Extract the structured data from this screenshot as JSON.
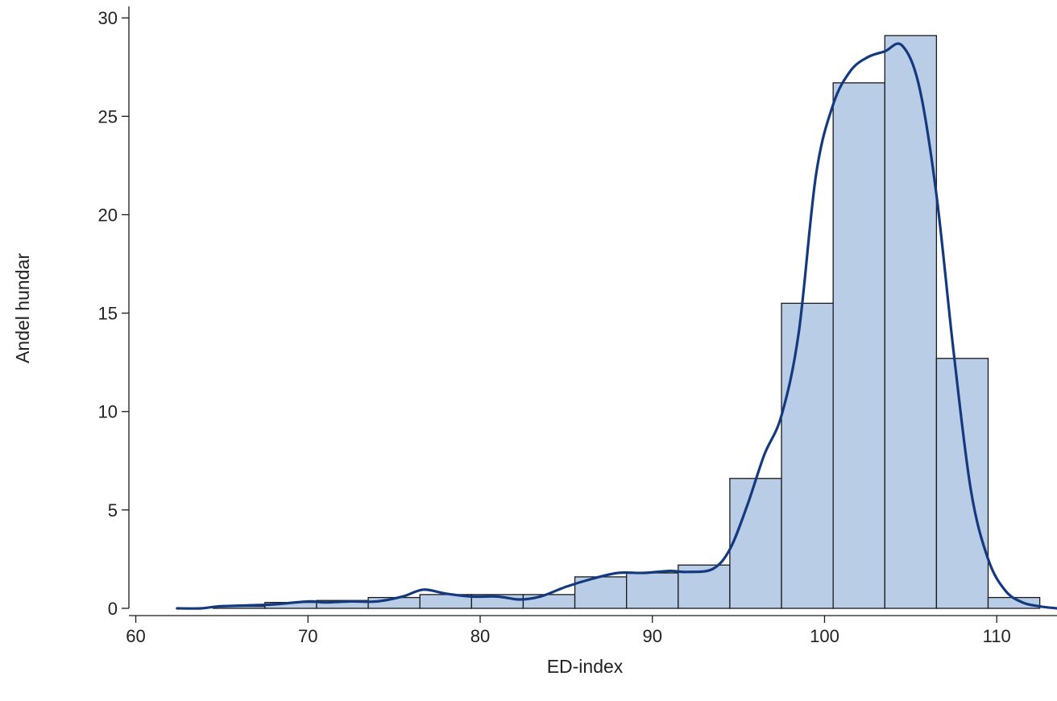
{
  "chart_data": {
    "type": "bar",
    "subtype": "histogram-with-density",
    "xlabel": "ED-index",
    "ylabel": "Andel hundar",
    "xlim": [
      59.6,
      113.5
    ],
    "ylim": [
      0,
      30.5
    ],
    "xticks": [
      60,
      70,
      80,
      90,
      100,
      110
    ],
    "yticks": [
      0,
      5,
      10,
      15,
      20,
      25,
      30
    ],
    "grid": false,
    "bin_width": 3,
    "bins": [
      {
        "x0": 64.5,
        "x1": 67.5,
        "value": 0.1
      },
      {
        "x0": 67.5,
        "x1": 70.5,
        "value": 0.3
      },
      {
        "x0": 70.5,
        "x1": 73.5,
        "value": 0.4
      },
      {
        "x0": 73.5,
        "x1": 76.5,
        "value": 0.55
      },
      {
        "x0": 76.5,
        "x1": 79.5,
        "value": 0.7
      },
      {
        "x0": 79.5,
        "x1": 82.5,
        "value": 0.7
      },
      {
        "x0": 82.5,
        "x1": 85.5,
        "value": 0.7
      },
      {
        "x0": 85.5,
        "x1": 88.5,
        "value": 1.6
      },
      {
        "x0": 88.5,
        "x1": 91.5,
        "value": 1.8
      },
      {
        "x0": 91.5,
        "x1": 94.5,
        "value": 2.2
      },
      {
        "x0": 94.5,
        "x1": 97.5,
        "value": 6.6
      },
      {
        "x0": 97.5,
        "x1": 100.5,
        "value": 15.5
      },
      {
        "x0": 100.5,
        "x1": 103.5,
        "value": 26.7
      },
      {
        "x0": 103.5,
        "x1": 106.5,
        "value": 29.1
      },
      {
        "x0": 106.5,
        "x1": 109.5,
        "value": 12.7
      },
      {
        "x0": 109.5,
        "x1": 112.5,
        "value": 0.55
      }
    ],
    "density": {
      "x": [
        62.4,
        63.8,
        64.8,
        66.5,
        68.0,
        70.0,
        71.0,
        72.5,
        74.0,
        75.5,
        76.7,
        78.0,
        79.5,
        81.0,
        82.3,
        83.5,
        85.0,
        86.5,
        88.0,
        89.5,
        91.0,
        92.0,
        93.5,
        94.5,
        95.5,
        96.5,
        97.5,
        98.5,
        99.5,
        100.5,
        101.5,
        102.5,
        103.5,
        104.5,
        105.5,
        106.5,
        107.5,
        108.5,
        109.5,
        110.5,
        111.5,
        112.5,
        113.5
      ],
      "y": [
        0.0,
        0.0,
        0.1,
        0.15,
        0.2,
        0.35,
        0.3,
        0.35,
        0.35,
        0.6,
        0.95,
        0.75,
        0.6,
        0.6,
        0.45,
        0.6,
        1.1,
        1.5,
        1.8,
        1.8,
        1.9,
        1.85,
        2.0,
        3.0,
        5.2,
        7.8,
        9.8,
        14.0,
        22.0,
        25.6,
        27.3,
        28.0,
        28.3,
        28.6,
        26.5,
        21.0,
        13.0,
        6.0,
        2.5,
        0.9,
        0.3,
        0.1,
        0.0
      ]
    },
    "colors": {
      "bar_fill": "#b9cde7",
      "bar_stroke": "#1a1a1a",
      "density_line": "#15397f",
      "axis": "#1a1a1a"
    }
  }
}
